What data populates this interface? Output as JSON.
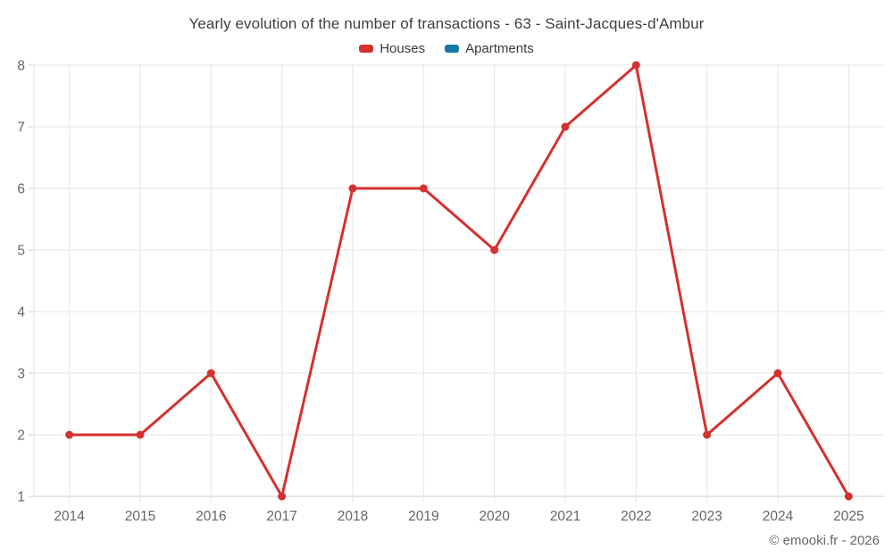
{
  "title": "Yearly evolution of the number of transactions - 63 - Saint-Jacques-d'Ambur",
  "footer": {
    "copyright": "© emooki.fr - 2026"
  },
  "colors": {
    "houses": "#d5312e",
    "apartments": "#1779a5",
    "grid": "#e6e6e6",
    "axis": "#cccccc",
    "tick_label": "#666666",
    "title_text": "#3f3f3f"
  },
  "chart_data": {
    "type": "line",
    "title": "Yearly evolution of the number of transactions - 63 - Saint-Jacques-d'Ambur",
    "categories": [
      2014,
      2015,
      2016,
      2017,
      2018,
      2019,
      2020,
      2021,
      2022,
      2023,
      2024,
      2025
    ],
    "series": [
      {
        "name": "Houses",
        "color": "#d5312e",
        "values": [
          2,
          2,
          3,
          1,
          6,
          6,
          5,
          7,
          8,
          2,
          3,
          1
        ]
      },
      {
        "name": "Apartments",
        "color": "#1779a5",
        "values": []
      }
    ],
    "xlabel": "",
    "ylabel": "",
    "ylim": [
      1,
      8
    ],
    "yticks": [
      1,
      2,
      3,
      4,
      5,
      6,
      7,
      8
    ],
    "grid": true,
    "legend_position": "top",
    "marker": "circle"
  }
}
